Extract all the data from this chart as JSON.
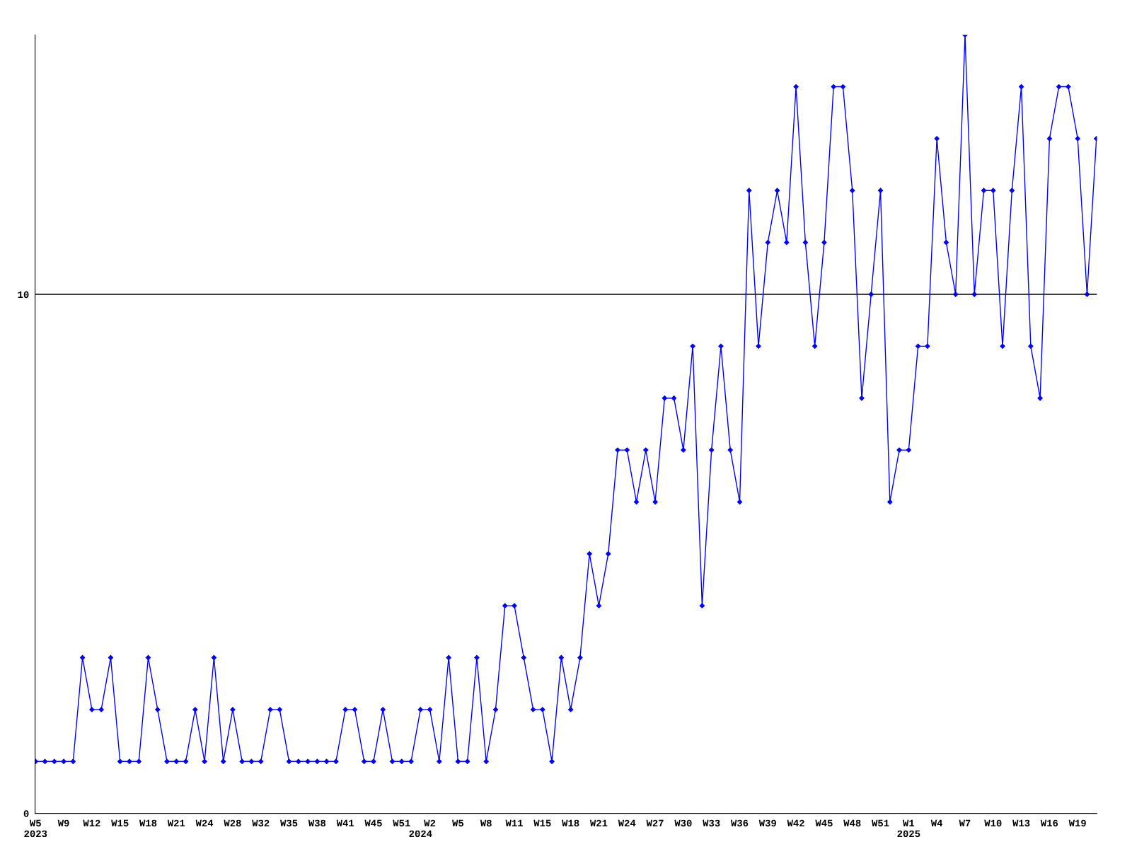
{
  "chart_data": {
    "type": "line",
    "categories": [
      "W5\n2023",
      null,
      null,
      "W9",
      null,
      null,
      "W12",
      null,
      null,
      "W15",
      null,
      null,
      "W18",
      null,
      null,
      "W21",
      null,
      null,
      "W24",
      null,
      null,
      "W28",
      null,
      null,
      "W32",
      null,
      null,
      "W35",
      null,
      null,
      "W38",
      null,
      null,
      "W41",
      null,
      null,
      "W45",
      null,
      null,
      "W51",
      null,
      "\n2024",
      "W2",
      null,
      null,
      "W5",
      null,
      null,
      "W8",
      null,
      null,
      "W11",
      null,
      null,
      "W15",
      null,
      null,
      "W18",
      null,
      null,
      "W21",
      null,
      null,
      "W24",
      null,
      null,
      "W27",
      null,
      null,
      "W30",
      null,
      null,
      "W33",
      null,
      null,
      "W36",
      null,
      null,
      "W39",
      null,
      null,
      "W42",
      null,
      null,
      "W45",
      null,
      null,
      "W48",
      null,
      null,
      "W51",
      null,
      null,
      "W1\n2025",
      null,
      null,
      "W4",
      null,
      null,
      "W7",
      null,
      null,
      "W10",
      null,
      null,
      "W13",
      null,
      null,
      "W16",
      null,
      null,
      "W19",
      null,
      null
    ],
    "series": [
      {
        "color": "#0000ff",
        "values": [
          1,
          1,
          1,
          1,
          1,
          3,
          2,
          2,
          3,
          1,
          1,
          1,
          3,
          2,
          1,
          1,
          1,
          2,
          1,
          3,
          1,
          2,
          1,
          1,
          1,
          2,
          2,
          1,
          1,
          1,
          1,
          1,
          1,
          2,
          2,
          1,
          1,
          2,
          1,
          1,
          1,
          2,
          2,
          1,
          3,
          1,
          1,
          3,
          1,
          2,
          4,
          4,
          3,
          2,
          2,
          1,
          3,
          2,
          3,
          5,
          4,
          5,
          7,
          7,
          6,
          7,
          6,
          8,
          8,
          7,
          9,
          4,
          7,
          9,
          7,
          6,
          12,
          9,
          11,
          12,
          11,
          14,
          11,
          9,
          11,
          14,
          14,
          12,
          8,
          10,
          12,
          6,
          7,
          7,
          9,
          9,
          13,
          11,
          10,
          15,
          10,
          12,
          12,
          9,
          12,
          14,
          9,
          8,
          13,
          14,
          14,
          13,
          10,
          13
        ]
      }
    ],
    "ylim": [
      0,
      15
    ],
    "yticks": [
      0,
      10
    ],
    "grid": "y",
    "marker": "diamond",
    "line_style": "solid",
    "legend": false
  }
}
